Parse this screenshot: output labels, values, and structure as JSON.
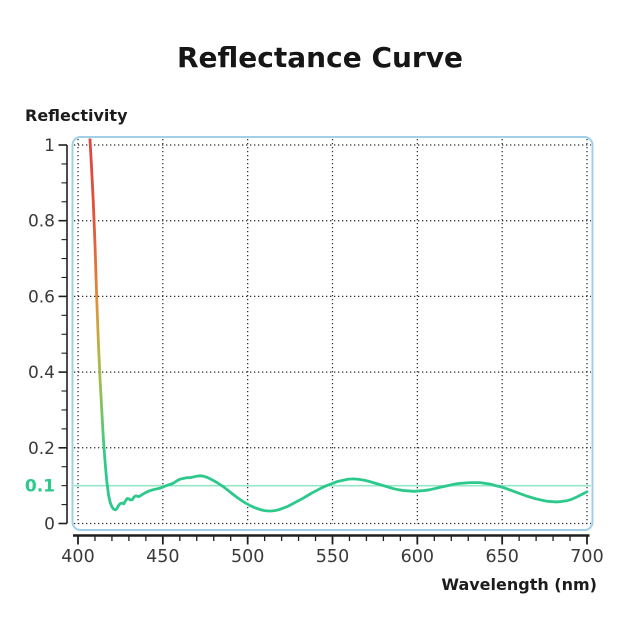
{
  "title": "Reflectance Curve",
  "y_axis": {
    "label": "Reflectivity",
    "ticks": [
      0,
      0.2,
      0.4,
      0.6,
      0.8,
      1
    ],
    "minor_step": 0.05,
    "range": [
      0,
      1
    ],
    "highlight_tick": {
      "value": 0.1,
      "label": "0.1",
      "color": "#2bc98b"
    }
  },
  "x_axis": {
    "label": "Wavelength (nm)",
    "ticks": [
      400,
      450,
      500,
      550,
      600,
      650,
      700
    ],
    "minor_step": 10,
    "range": [
      400,
      700
    ]
  },
  "chart_data": {
    "type": "line",
    "title": "Reflectance Curve",
    "xlabel": "Wavelength (nm)",
    "ylabel": "Reflectivity",
    "xlim": [
      400,
      700
    ],
    "ylim": [
      0,
      1
    ],
    "grid": "dotted",
    "reference_line": {
      "y": 0.1,
      "color": "#96e7c7"
    },
    "series": [
      {
        "name": "reflectance",
        "points": [
          [
            406.5,
            1.06
          ],
          [
            408,
            0.94
          ],
          [
            409,
            0.85
          ],
          [
            410,
            0.74
          ],
          [
            411,
            0.6
          ],
          [
            412,
            0.48
          ],
          [
            413,
            0.38
          ],
          [
            414,
            0.3
          ],
          [
            415,
            0.22
          ],
          [
            416,
            0.16
          ],
          [
            417,
            0.11
          ],
          [
            418,
            0.075
          ],
          [
            419,
            0.055
          ],
          [
            420,
            0.044
          ],
          [
            421,
            0.038
          ],
          [
            422,
            0.036
          ],
          [
            423,
            0.04
          ],
          [
            424,
            0.048
          ],
          [
            425,
            0.053
          ],
          [
            426,
            0.054
          ],
          [
            427,
            0.052
          ],
          [
            428,
            0.06
          ],
          [
            429,
            0.066
          ],
          [
            430,
            0.065
          ],
          [
            431,
            0.062
          ],
          [
            432,
            0.063
          ],
          [
            433,
            0.07
          ],
          [
            434,
            0.073
          ],
          [
            435,
            0.072
          ],
          [
            436,
            0.071
          ],
          [
            438,
            0.077
          ],
          [
            440,
            0.082
          ],
          [
            442,
            0.086
          ],
          [
            444,
            0.089
          ],
          [
            446,
            0.091
          ],
          [
            448,
            0.093
          ],
          [
            450,
            0.096
          ],
          [
            452,
            0.1
          ],
          [
            454,
            0.103
          ],
          [
            456,
            0.106
          ],
          [
            458,
            0.112
          ],
          [
            460,
            0.117
          ],
          [
            462,
            0.119
          ],
          [
            464,
            0.121
          ],
          [
            466,
            0.121
          ],
          [
            468,
            0.123
          ],
          [
            470,
            0.125
          ],
          [
            472,
            0.126
          ],
          [
            474,
            0.125
          ],
          [
            476,
            0.122
          ],
          [
            478,
            0.118
          ],
          [
            480,
            0.113
          ],
          [
            482,
            0.108
          ],
          [
            484,
            0.102
          ],
          [
            486,
            0.096
          ],
          [
            488,
            0.089
          ],
          [
            490,
            0.082
          ],
          [
            492,
            0.075
          ],
          [
            494,
            0.068
          ],
          [
            496,
            0.062
          ],
          [
            498,
            0.056
          ],
          [
            500,
            0.051
          ],
          [
            502,
            0.046
          ],
          [
            504,
            0.042
          ],
          [
            506,
            0.039
          ],
          [
            508,
            0.036
          ],
          [
            510,
            0.034
          ],
          [
            512,
            0.033
          ],
          [
            514,
            0.033
          ],
          [
            516,
            0.034
          ],
          [
            518,
            0.036
          ],
          [
            520,
            0.039
          ],
          [
            523,
            0.044
          ],
          [
            526,
            0.051
          ],
          [
            529,
            0.058
          ],
          [
            532,
            0.065
          ],
          [
            535,
            0.073
          ],
          [
            538,
            0.081
          ],
          [
            541,
            0.088
          ],
          [
            544,
            0.095
          ],
          [
            547,
            0.101
          ],
          [
            550,
            0.106
          ],
          [
            553,
            0.111
          ],
          [
            556,
            0.114
          ],
          [
            559,
            0.117
          ],
          [
            562,
            0.118
          ],
          [
            565,
            0.117
          ],
          [
            568,
            0.115
          ],
          [
            571,
            0.112
          ],
          [
            574,
            0.108
          ],
          [
            577,
            0.104
          ],
          [
            580,
            0.1
          ],
          [
            583,
            0.096
          ],
          [
            586,
            0.092
          ],
          [
            589,
            0.089
          ],
          [
            592,
            0.087
          ],
          [
            595,
            0.086
          ],
          [
            598,
            0.085
          ],
          [
            601,
            0.086
          ],
          [
            604,
            0.087
          ],
          [
            607,
            0.089
          ],
          [
            610,
            0.092
          ],
          [
            613,
            0.095
          ],
          [
            616,
            0.098
          ],
          [
            619,
            0.101
          ],
          [
            622,
            0.104
          ],
          [
            625,
            0.106
          ],
          [
            628,
            0.107
          ],
          [
            631,
            0.108
          ],
          [
            634,
            0.108
          ],
          [
            637,
            0.108
          ],
          [
            640,
            0.106
          ],
          [
            643,
            0.104
          ],
          [
            646,
            0.1
          ],
          [
            649,
            0.097
          ],
          [
            652,
            0.093
          ],
          [
            655,
            0.088
          ],
          [
            658,
            0.083
          ],
          [
            661,
            0.078
          ],
          [
            664,
            0.073
          ],
          [
            667,
            0.069
          ],
          [
            670,
            0.065
          ],
          [
            673,
            0.062
          ],
          [
            676,
            0.059
          ],
          [
            679,
            0.058
          ],
          [
            682,
            0.057
          ],
          [
            685,
            0.058
          ],
          [
            688,
            0.06
          ],
          [
            691,
            0.064
          ],
          [
            694,
            0.07
          ],
          [
            697,
            0.077
          ],
          [
            700,
            0.084
          ]
        ]
      }
    ],
    "curve_gradient": [
      {
        "offset": 0.0,
        "color": "#e0463c"
      },
      {
        "offset": 0.22,
        "color": "#e0503c"
      },
      {
        "offset": 0.4,
        "color": "#e2763a"
      },
      {
        "offset": 0.52,
        "color": "#d99a38"
      },
      {
        "offset": 0.65,
        "color": "#bcb245"
      },
      {
        "offset": 0.78,
        "color": "#8cc156"
      },
      {
        "offset": 0.92,
        "color": "#45c97e"
      },
      {
        "offset": 1.0,
        "color": "#2dc98c"
      }
    ],
    "colors": {
      "box_border": "#9fd0e8",
      "grid": "#2b2b2b",
      "axis": "#1f1f1f",
      "tick_label": "#3a3a3a",
      "curve_base": "#2dc98c"
    }
  }
}
